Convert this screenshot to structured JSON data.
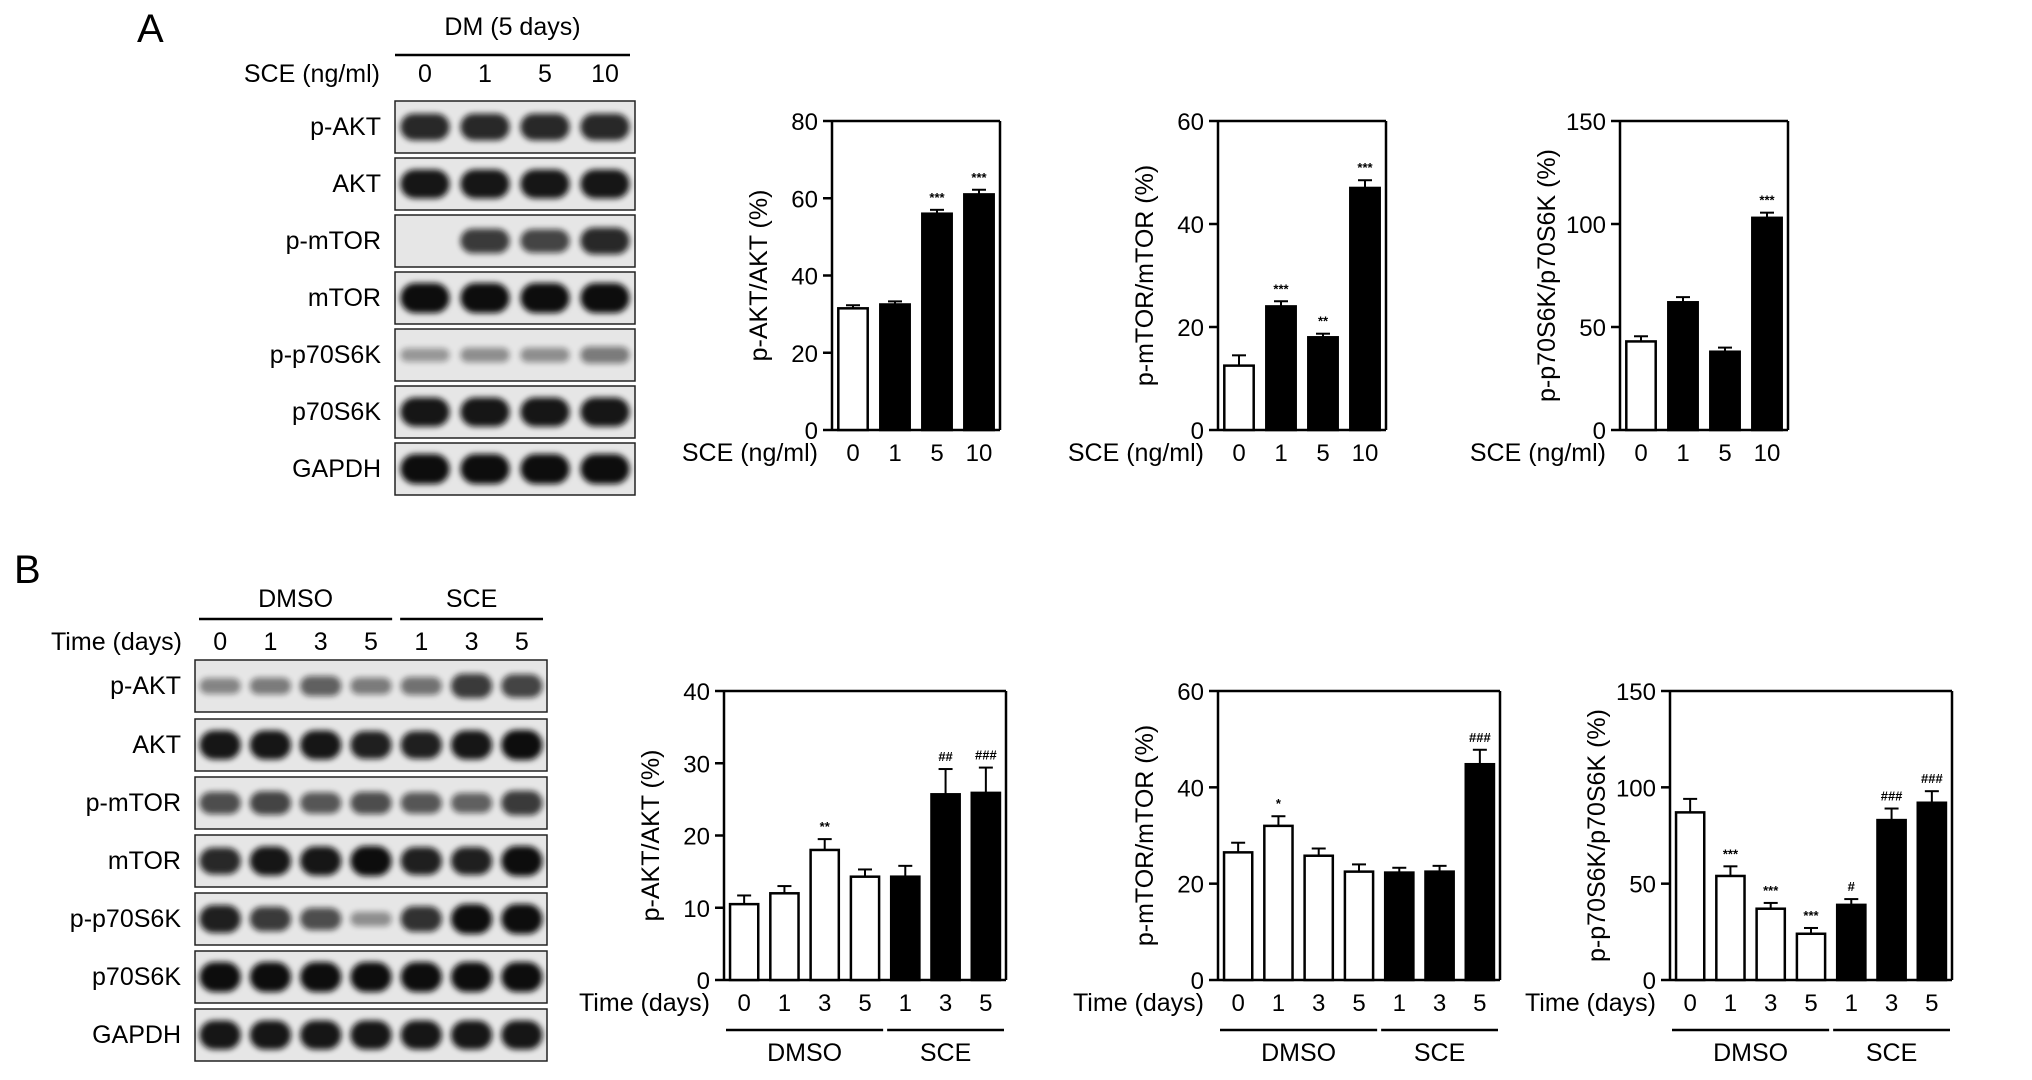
{
  "panels": [
    {
      "letter": "A",
      "blot": {
        "header": "DM (5 days)",
        "condition_label": "SCE (ng/ml)",
        "lanes": [
          "0",
          "1",
          "5",
          "10"
        ],
        "groups": [],
        "rows": [
          "p-AKT",
          "AKT",
          "p-mTOR",
          "mTOR",
          "p-p70S6K",
          "p70S6K",
          "GAPDH"
        ],
        "intensities": [
          [
            0.85,
            0.85,
            0.85,
            0.85
          ],
          [
            0.95,
            0.95,
            0.95,
            0.95
          ],
          [
            0.0,
            0.75,
            0.7,
            0.85
          ],
          [
            1.0,
            1.0,
            1.0,
            1.0
          ],
          [
            0.25,
            0.3,
            0.3,
            0.4
          ],
          [
            0.95,
            0.95,
            0.95,
            0.95
          ],
          [
            1.0,
            1.0,
            1.0,
            1.0
          ]
        ]
      }
    },
    {
      "letter": "B",
      "blot": {
        "header": "",
        "condition_label": "Time (days)",
        "lanes": [
          "0",
          "1",
          "3",
          "5",
          "1",
          "3",
          "5"
        ],
        "groups": [
          {
            "label": "DMSO",
            "from": 0,
            "to": 3
          },
          {
            "label": "SCE",
            "from": 4,
            "to": 6
          }
        ],
        "rows": [
          "p-AKT",
          "AKT",
          "p-mTOR",
          "mTOR",
          "p-p70S6K",
          "p70S6K",
          "GAPDH"
        ],
        "intensities": [
          [
            0.35,
            0.4,
            0.55,
            0.4,
            0.45,
            0.75,
            0.7
          ],
          [
            0.95,
            0.95,
            0.95,
            0.9,
            0.9,
            0.95,
            1.0
          ],
          [
            0.65,
            0.7,
            0.6,
            0.65,
            0.6,
            0.55,
            0.75
          ],
          [
            0.85,
            0.95,
            0.95,
            1.0,
            0.9,
            0.9,
            1.0
          ],
          [
            0.9,
            0.75,
            0.65,
            0.3,
            0.8,
            1.0,
            1.0
          ],
          [
            1.0,
            1.0,
            1.0,
            1.0,
            1.0,
            1.0,
            1.0
          ],
          [
            0.95,
            0.95,
            0.95,
            0.95,
            0.95,
            0.95,
            0.95
          ]
        ]
      }
    }
  ],
  "chart_data": [
    {
      "type": "bar",
      "panel": "A",
      "ylabel": "p-AKT/AKT (%)",
      "ylim": [
        0,
        80
      ],
      "yticks": [
        0,
        20,
        40,
        60,
        80
      ],
      "xlabel": "SCE (ng/ml)",
      "categories": [
        "0",
        "1",
        "5",
        "10"
      ],
      "groups": [],
      "values": [
        31.5,
        32.5,
        56,
        61
      ],
      "errors": [
        0.8,
        0.8,
        1.0,
        1.2
      ],
      "filled": [
        false,
        true,
        true,
        true
      ],
      "annotations": [
        "",
        "",
        "***",
        "***"
      ]
    },
    {
      "type": "bar",
      "panel": "A",
      "ylabel": "p-mTOR/mTOR (%)",
      "ylim": [
        0,
        60
      ],
      "yticks": [
        0,
        20,
        40,
        60
      ],
      "xlabel": "SCE (ng/ml)",
      "categories": [
        "0",
        "1",
        "5",
        "10"
      ],
      "groups": [],
      "values": [
        12.5,
        24,
        18,
        47
      ],
      "errors": [
        2.0,
        1.0,
        0.7,
        1.5
      ],
      "filled": [
        false,
        true,
        true,
        true
      ],
      "annotations": [
        "",
        "***",
        "**",
        "***"
      ]
    },
    {
      "type": "bar",
      "panel": "A",
      "ylabel": "p-p70S6K/p70S6K (%)",
      "ylim": [
        0,
        150
      ],
      "yticks": [
        0,
        50,
        100,
        150
      ],
      "xlabel": "SCE (ng/ml)",
      "categories": [
        "0",
        "1",
        "5",
        "10"
      ],
      "groups": [],
      "values": [
        43,
        62,
        38,
        103
      ],
      "errors": [
        2.5,
        2.5,
        2.0,
        2.5
      ],
      "filled": [
        false,
        true,
        true,
        true
      ],
      "annotations": [
        "",
        "",
        "",
        "***"
      ]
    },
    {
      "type": "bar",
      "panel": "B",
      "ylabel": "p-AKT/AKT (%)",
      "ylim": [
        0,
        40
      ],
      "yticks": [
        0,
        10,
        20,
        30,
        40
      ],
      "xlabel": "Time (days)",
      "categories": [
        "0",
        "1",
        "3",
        "5",
        "1",
        "3",
        "5"
      ],
      "groups": [
        {
          "label": "DMSO",
          "from": 0,
          "to": 3
        },
        {
          "label": "SCE",
          "from": 4,
          "to": 6
        }
      ],
      "values": [
        10.5,
        12,
        18,
        14.3,
        14.3,
        25.7,
        25.9
      ],
      "errors": [
        1.2,
        1.0,
        1.5,
        1.0,
        1.5,
        3.5,
        3.5
      ],
      "filled": [
        false,
        false,
        false,
        false,
        true,
        true,
        true
      ],
      "annotations": [
        "",
        "",
        "**",
        "",
        "",
        "##",
        "###"
      ]
    },
    {
      "type": "bar",
      "panel": "B",
      "ylabel": "p-mTOR/mTOR (%)",
      "ylim": [
        0,
        60
      ],
      "yticks": [
        0,
        20,
        40,
        60
      ],
      "xlabel": "Time (days)",
      "categories": [
        "0",
        "1",
        "3",
        "5",
        "1",
        "3",
        "5"
      ],
      "groups": [
        {
          "label": "DMSO",
          "from": 0,
          "to": 3
        },
        {
          "label": "SCE",
          "from": 4,
          "to": 6
        }
      ],
      "values": [
        26.5,
        32,
        25.8,
        22.5,
        22.3,
        22.5,
        44.8
      ],
      "errors": [
        2.0,
        2.0,
        1.5,
        1.5,
        1.0,
        1.2,
        3.0
      ],
      "filled": [
        false,
        false,
        false,
        false,
        true,
        true,
        true
      ],
      "annotations": [
        "",
        "*",
        "",
        "",
        "",
        "",
        "###"
      ]
    },
    {
      "type": "bar",
      "panel": "B",
      "ylabel": "p-p70S6K/p70S6K (%)",
      "ylim": [
        0,
        150
      ],
      "yticks": [
        0,
        50,
        100,
        150
      ],
      "xlabel": "Time (days)",
      "categories": [
        "0",
        "1",
        "3",
        "5",
        "1",
        "3",
        "5"
      ],
      "groups": [
        {
          "label": "DMSO",
          "from": 0,
          "to": 3
        },
        {
          "label": "SCE",
          "from": 4,
          "to": 6
        }
      ],
      "values": [
        87,
        54,
        37,
        24,
        39,
        83,
        92
      ],
      "errors": [
        7,
        5,
        3,
        3,
        3,
        6,
        6
      ],
      "filled": [
        false,
        false,
        false,
        false,
        true,
        true,
        true
      ],
      "annotations": [
        "",
        "***",
        "***",
        "***",
        "#",
        "###",
        "###"
      ]
    }
  ]
}
